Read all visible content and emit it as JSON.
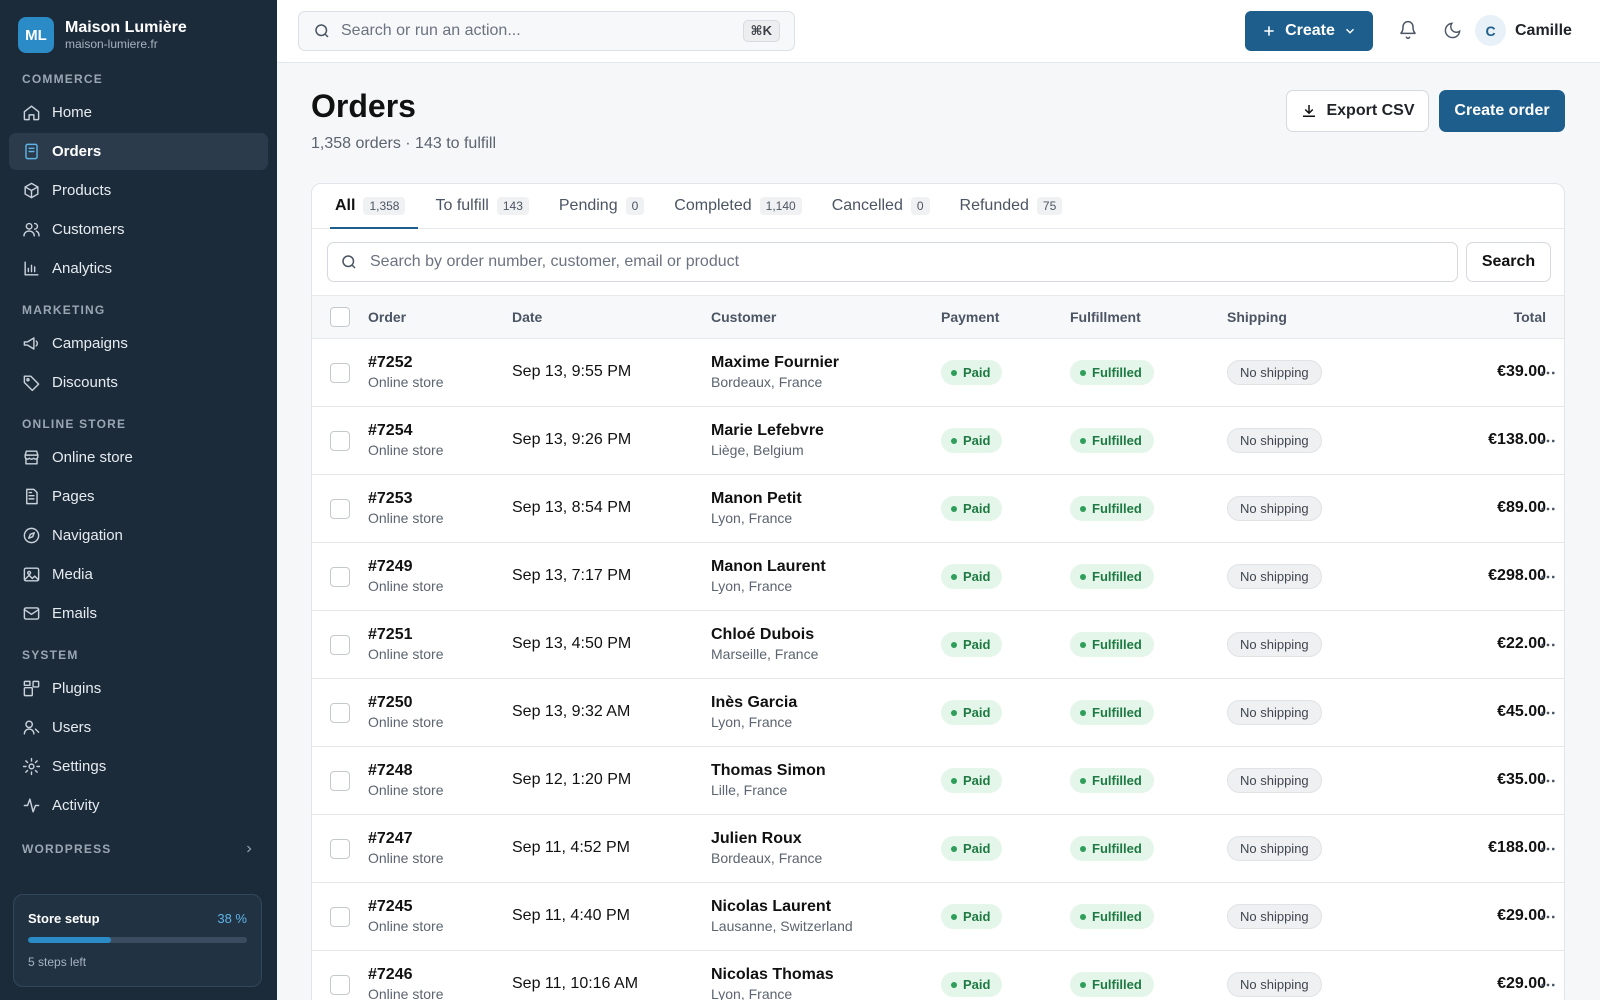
{
  "brand": {
    "initials": "ML",
    "name": "Maison Lumière",
    "domain": "maison-lumiere.fr"
  },
  "sidebar": {
    "sections": [
      {
        "title": "COMMERCE",
        "items": [
          {
            "label": "Home",
            "icon": "home-icon"
          },
          {
            "label": "Orders",
            "icon": "orders-icon",
            "active": true
          },
          {
            "label": "Products",
            "icon": "box-icon"
          },
          {
            "label": "Customers",
            "icon": "users-icon"
          },
          {
            "label": "Analytics",
            "icon": "chart-icon"
          }
        ]
      },
      {
        "title": "MARKETING",
        "items": [
          {
            "label": "Campaigns",
            "icon": "megaphone-icon"
          },
          {
            "label": "Discounts",
            "icon": "tag-icon"
          }
        ]
      },
      {
        "title": "ONLINE STORE",
        "items": [
          {
            "label": "Online store",
            "icon": "store-icon"
          },
          {
            "label": "Pages",
            "icon": "page-icon"
          },
          {
            "label": "Navigation",
            "icon": "compass-icon"
          },
          {
            "label": "Media",
            "icon": "image-icon"
          },
          {
            "label": "Emails",
            "icon": "mail-icon"
          }
        ]
      },
      {
        "title": "SYSTEM",
        "items": [
          {
            "label": "Plugins",
            "icon": "plugin-icon"
          },
          {
            "label": "Users",
            "icon": "user-icon"
          },
          {
            "label": "Settings",
            "icon": "gear-icon"
          },
          {
            "label": "Activity",
            "icon": "activity-icon"
          }
        ]
      }
    ],
    "collapsed_section": "WORDPRESS",
    "setup": {
      "title": "Store setup",
      "percent_label": "38 %",
      "progress": 0.38,
      "steps_left": "5 steps left"
    }
  },
  "topbar": {
    "search_placeholder": "Search or run an action...",
    "shortcut": "⌘K",
    "create_label": "Create",
    "user_initial": "C",
    "user_name": "Camille"
  },
  "page": {
    "title": "Orders",
    "subtitle": "1,358 orders · 143 to fulfill",
    "export_label": "Export CSV",
    "create_order_label": "Create order"
  },
  "tabs": [
    {
      "label": "All",
      "count": "1,358",
      "active": true
    },
    {
      "label": "To fulfill",
      "count": "143"
    },
    {
      "label": "Pending",
      "count": "0"
    },
    {
      "label": "Completed",
      "count": "1,140"
    },
    {
      "label": "Cancelled",
      "count": "0"
    },
    {
      "label": "Refunded",
      "count": "75"
    }
  ],
  "table_search": {
    "placeholder": "Search by order number, customer, email or product",
    "button": "Search"
  },
  "columns": {
    "order": "Order",
    "date": "Date",
    "customer": "Customer",
    "payment": "Payment",
    "fulfillment": "Fulfillment",
    "shipping": "Shipping",
    "total": "Total"
  },
  "orders": [
    {
      "number": "#7252",
      "channel": "Online store",
      "date": "Sep 13, 9:55 PM",
      "customer": "Maxime Fournier",
      "location": "Bordeaux, France",
      "payment": "Paid",
      "fulfillment": "Fulfilled",
      "shipping": "No shipping",
      "total": "€39.00"
    },
    {
      "number": "#7254",
      "channel": "Online store",
      "date": "Sep 13, 9:26 PM",
      "customer": "Marie Lefebvre",
      "location": "Liège, Belgium",
      "payment": "Paid",
      "fulfillment": "Fulfilled",
      "shipping": "No shipping",
      "total": "€138.00"
    },
    {
      "number": "#7253",
      "channel": "Online store",
      "date": "Sep 13, 8:54 PM",
      "customer": "Manon Petit",
      "location": "Lyon, France",
      "payment": "Paid",
      "fulfillment": "Fulfilled",
      "shipping": "No shipping",
      "total": "€89.00"
    },
    {
      "number": "#7249",
      "channel": "Online store",
      "date": "Sep 13, 7:17 PM",
      "customer": "Manon Laurent",
      "location": "Lyon, France",
      "payment": "Paid",
      "fulfillment": "Fulfilled",
      "shipping": "No shipping",
      "total": "€298.00"
    },
    {
      "number": "#7251",
      "channel": "Online store",
      "date": "Sep 13, 4:50 PM",
      "customer": "Chloé Dubois",
      "location": "Marseille, France",
      "payment": "Paid",
      "fulfillment": "Fulfilled",
      "shipping": "No shipping",
      "total": "€22.00"
    },
    {
      "number": "#7250",
      "channel": "Online store",
      "date": "Sep 13, 9:32 AM",
      "customer": "Inès Garcia",
      "location": "Lyon, France",
      "payment": "Paid",
      "fulfillment": "Fulfilled",
      "shipping": "No shipping",
      "total": "€45.00"
    },
    {
      "number": "#7248",
      "channel": "Online store",
      "date": "Sep 12, 1:20 PM",
      "customer": "Thomas Simon",
      "location": "Lille, France",
      "payment": "Paid",
      "fulfillment": "Fulfilled",
      "shipping": "No shipping",
      "total": "€35.00"
    },
    {
      "number": "#7247",
      "channel": "Online store",
      "date": "Sep 11, 4:52 PM",
      "customer": "Julien Roux",
      "location": "Bordeaux, France",
      "payment": "Paid",
      "fulfillment": "Fulfilled",
      "shipping": "No shipping",
      "total": "€188.00"
    },
    {
      "number": "#7245",
      "channel": "Online store",
      "date": "Sep 11, 4:40 PM",
      "customer": "Nicolas Laurent",
      "location": "Lausanne, Switzerland",
      "payment": "Paid",
      "fulfillment": "Fulfilled",
      "shipping": "No shipping",
      "total": "€29.00"
    },
    {
      "number": "#7246",
      "channel": "Online store",
      "date": "Sep 11, 10:16 AM",
      "customer": "Nicolas Thomas",
      "location": "Lyon, France",
      "payment": "Paid",
      "fulfillment": "Fulfilled",
      "shipping": "No shipping",
      "total": "€29.00"
    }
  ],
  "colors": {
    "sidebar_bg": "#1c2b3a",
    "primary": "#1d5e8c",
    "accent": "#2a8bc6",
    "success_bg": "#e4f5ea",
    "success_text": "#1e7a42"
  }
}
